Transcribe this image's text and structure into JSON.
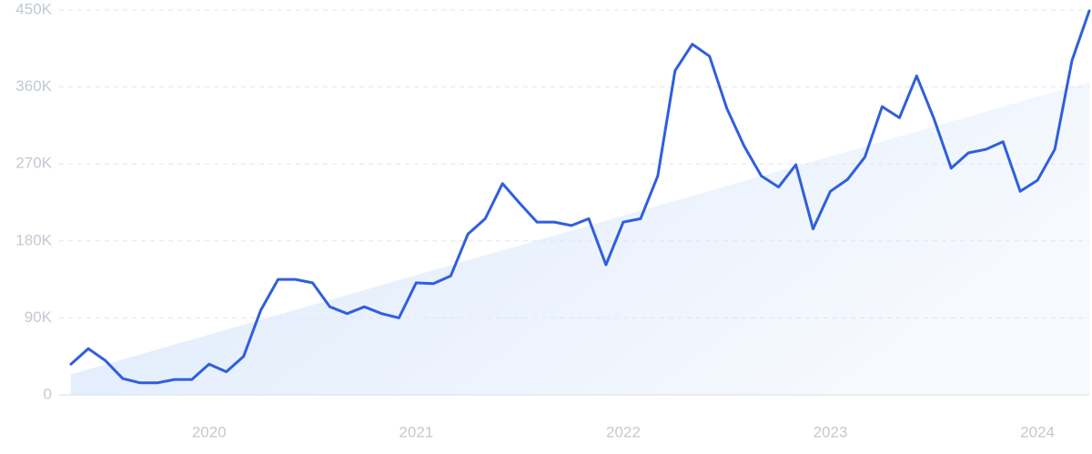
{
  "chart_data": {
    "type": "line",
    "categories": [
      null,
      null,
      null,
      null,
      null,
      null,
      null,
      null,
      "2020",
      null,
      null,
      null,
      null,
      null,
      null,
      null,
      null,
      null,
      null,
      null,
      "2021",
      null,
      null,
      null,
      null,
      null,
      null,
      null,
      null,
      null,
      null,
      null,
      "2022",
      null,
      null,
      null,
      null,
      null,
      null,
      null,
      null,
      null,
      null,
      null,
      "2023",
      null,
      null,
      null,
      null,
      null,
      null,
      null,
      null,
      null,
      null,
      null,
      "2024",
      null,
      null,
      null
    ],
    "series": [
      {
        "color": "#2f5fdd",
        "values": [
          36000,
          54000,
          40000,
          19000,
          14000,
          14000,
          18000,
          18000,
          36000,
          27000,
          45000,
          99000,
          135000,
          135000,
          131000,
          103000,
          95000,
          103000,
          95000,
          90000,
          131000,
          130000,
          139000,
          188000,
          206000,
          247000,
          224000,
          202000,
          202000,
          198000,
          206000,
          152000,
          202000,
          206000,
          256000,
          379000,
          410000,
          396000,
          335000,
          291000,
          256000,
          243000,
          269000,
          194000,
          238000,
          252000,
          278000,
          337000,
          324000,
          373000,
          323000,
          265000,
          283000,
          287000,
          296000,
          238000,
          251000,
          287000,
          391000,
          449000
        ]
      }
    ],
    "trend": {
      "color": "#dbe8fb",
      "values": [
        24000,
        366000
      ]
    },
    "ylim": [
      0,
      450000
    ],
    "yticks": [
      0,
      {
        "value": 90000,
        "label": "90K"
      },
      {
        "value": 180000,
        "label": "180K"
      },
      {
        "value": 270000,
        "label": "270K"
      },
      {
        "value": 360000,
        "label": "360K"
      },
      {
        "value": 450000,
        "label": "450K"
      }
    ],
    "grid": true
  }
}
